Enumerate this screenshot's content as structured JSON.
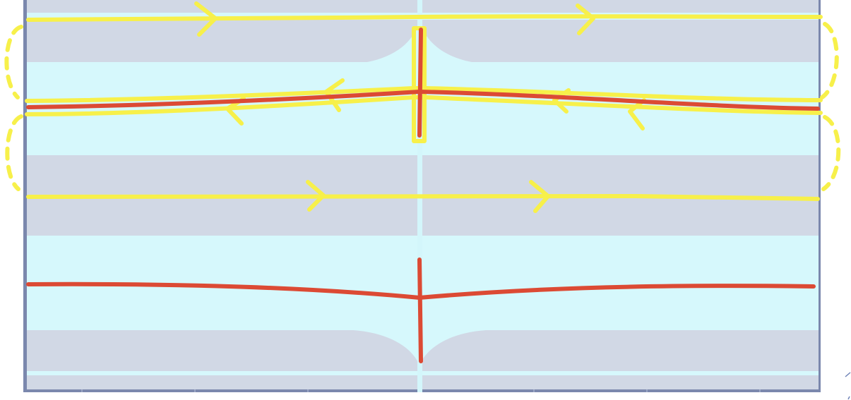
{
  "colors": {
    "background": "#ffffff",
    "frame": "#7b88ad",
    "dark_band": "#d1d8e5",
    "light_band": "#d6f8fc",
    "divider": "#d3f6fb",
    "red_curve": "#dc4a34",
    "yellow_curve": "#f7f04a"
  }
}
